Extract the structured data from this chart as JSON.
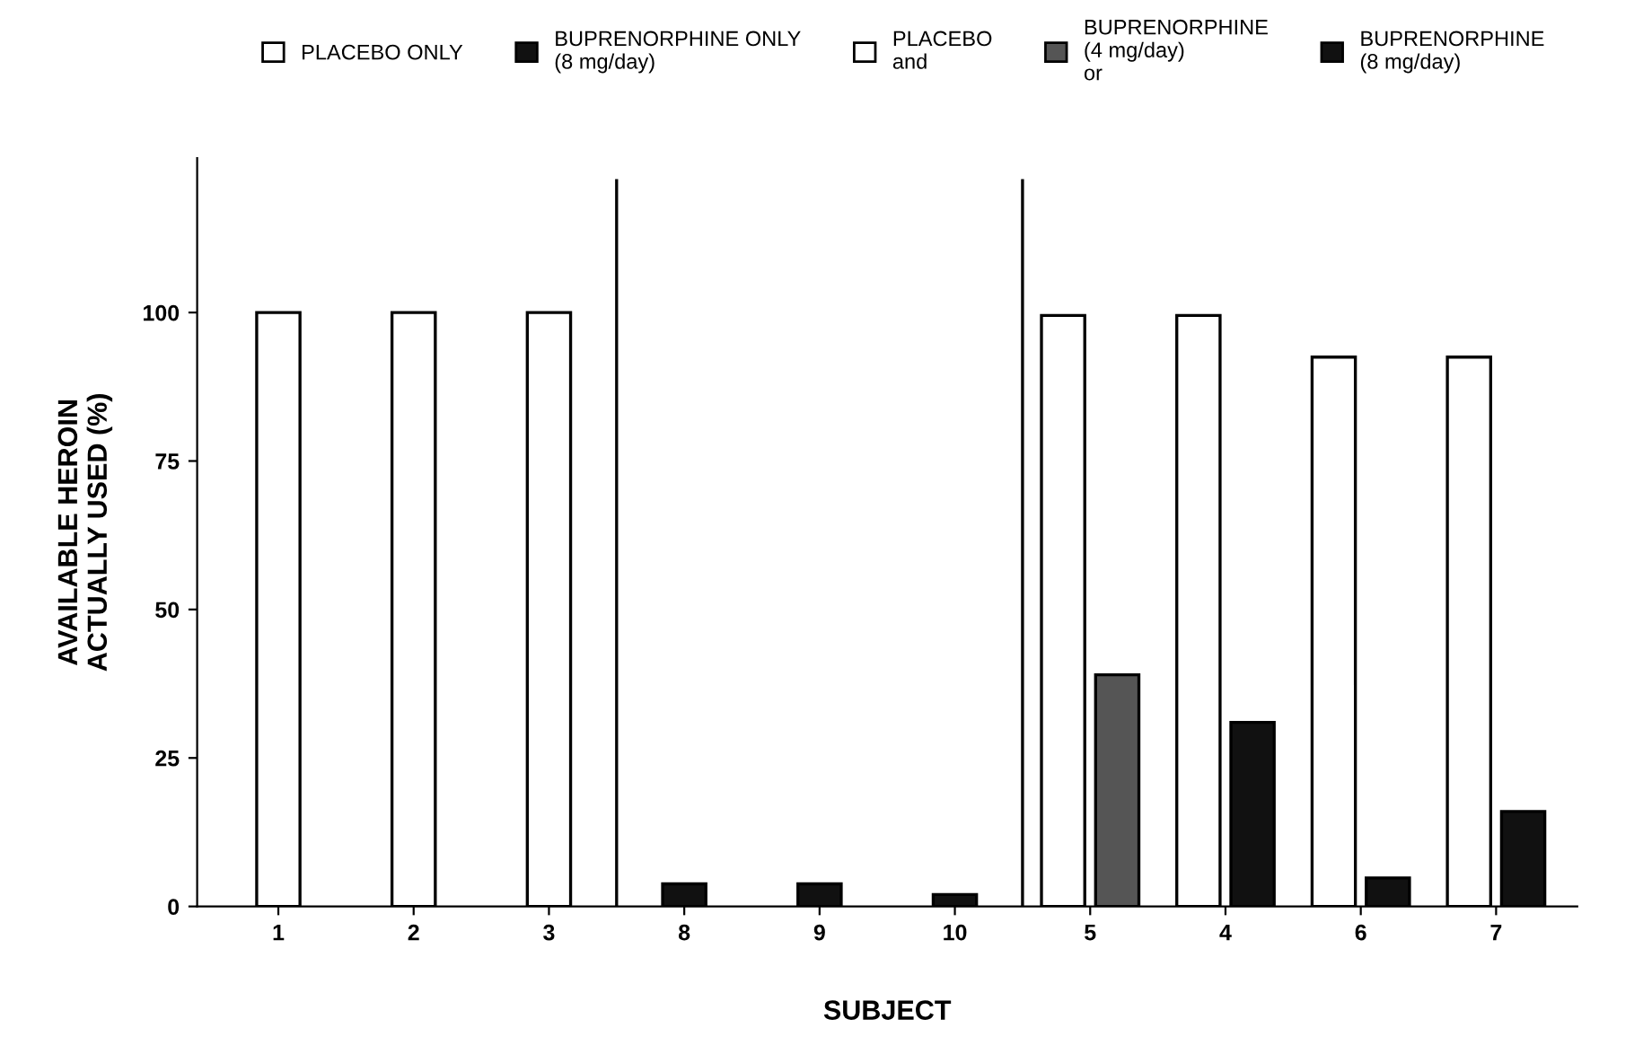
{
  "chart_data": {
    "type": "bar",
    "xlabel": "SUBJECT",
    "ylabel": "AVAILABLE HEROIN\nACTUALLY USED (%)",
    "categories": [
      "1",
      "2",
      "3",
      "8",
      "9",
      "10",
      "5",
      "4",
      "6",
      "7"
    ],
    "series": [
      {
        "name": "PLACEBO ONLY",
        "color": "#ffffff",
        "values": [
          100,
          100,
          100,
          null,
          null,
          null,
          null,
          null,
          null,
          null
        ]
      },
      {
        "name": "BUPRENORPHINE ONLY\n(8 mg/day)",
        "color": "#111111",
        "values": [
          null,
          null,
          null,
          3.8,
          3.8,
          2,
          null,
          null,
          null,
          null
        ]
      },
      {
        "name": "PLACEBO\nand",
        "color": "#ffffff",
        "values": [
          null,
          null,
          null,
          null,
          null,
          null,
          99.5,
          99.5,
          92.5,
          92.5
        ]
      },
      {
        "name": "BUPRENORPHINE\n(4 mg/day)\nor",
        "color": "#555555",
        "values": [
          null,
          null,
          null,
          null,
          null,
          null,
          39,
          null,
          null,
          null
        ]
      },
      {
        "name": "BUPRENORPHINE\n(8 mg/day)",
        "color": "#111111",
        "values": [
          null,
          null,
          null,
          null,
          null,
          null,
          null,
          31,
          4.8,
          16
        ]
      }
    ],
    "ylim": [
      0,
      126
    ],
    "yticks": [
      0,
      25,
      50,
      75,
      100
    ],
    "grid": false,
    "legend": "top"
  }
}
